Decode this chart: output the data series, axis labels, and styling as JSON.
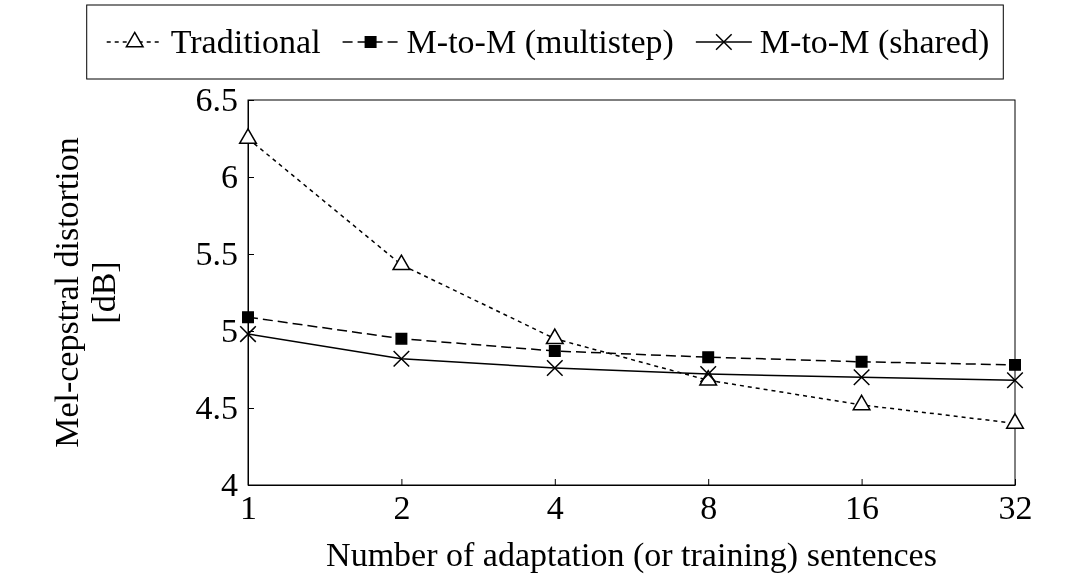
{
  "chart_data": {
    "type": "line",
    "xlabel": "Number of adaptation (or training) sentences",
    "ylabel": "Mel-cepstral distortion [dB]",
    "log": "x",
    "x": [
      1,
      2,
      4,
      8,
      16,
      32
    ],
    "xlim": [
      1,
      32
    ],
    "xticks": [
      1,
      2,
      4,
      8,
      16,
      32
    ],
    "ylim": [
      4,
      6.5
    ],
    "yticks": [
      4,
      4.5,
      5,
      5.5,
      6,
      6.5
    ],
    "legend": "top",
    "grid": false,
    "series": [
      {
        "name": "Traditional",
        "color": "#000000",
        "marker": "triangle",
        "line_style": "dotted",
        "values": [
          6.25,
          5.43,
          4.95,
          4.68,
          4.52,
          4.4
        ]
      },
      {
        "name": "M-to-M (multistep)",
        "color": "#000000",
        "marker": "square",
        "line_style": "dashed",
        "values": [
          5.09,
          4.95,
          4.87,
          4.83,
          4.8,
          4.78
        ]
      },
      {
        "name": "M-to-M (shared)",
        "color": "#000000",
        "marker": "cross",
        "line_style": "solid",
        "values": [
          4.98,
          4.82,
          4.76,
          4.72,
          4.7,
          4.68
        ]
      }
    ]
  }
}
